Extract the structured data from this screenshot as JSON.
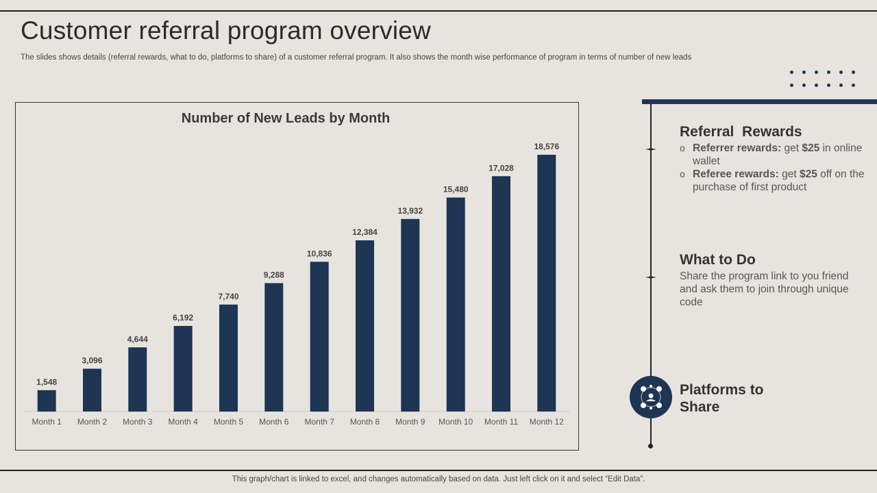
{
  "header": {
    "title": "Customer referral program overview",
    "subtitle": "The slides shows details (referral rewards, what to do, platforms to share) of a customer referral program. It also shows the month wise performance of program in terms of number of new leads"
  },
  "chart_data": {
    "type": "bar",
    "title": "Number of New Leads by Month",
    "categories": [
      "Month 1",
      "Month 2",
      "Month 3",
      "Month 4",
      "Month 5",
      "Month 6",
      "Month 7",
      "Month 8",
      "Month 9",
      "Month 10",
      "Month 11",
      "Month 12"
    ],
    "values": [
      1548,
      3096,
      4644,
      6192,
      7740,
      9288,
      10836,
      12384,
      13932,
      15480,
      17028,
      18576
    ],
    "value_labels": [
      "1,548",
      "3,096",
      "4,644",
      "6,192",
      "7,740",
      "9,288",
      "10,836",
      "12,384",
      "13,932",
      "15,480",
      "17,028",
      "18,576"
    ],
    "xlabel": "",
    "ylabel": "",
    "ylim": [
      0,
      20000
    ],
    "grid": false,
    "legend": "none",
    "bar_color": "#1e3553"
  },
  "sections": {
    "rewards": {
      "heading": "Referral  Rewards",
      "items": [
        {
          "bullet": "o",
          "bold": "Referrer rewards:",
          "pre": " get ",
          "strong": "$25",
          "post": " in online wallet"
        },
        {
          "bullet": "o",
          "bold": "Referee rewards:",
          "pre": " get ",
          "strong": "$25",
          "post": " off on the purchase of first product"
        }
      ]
    },
    "what_to_do": {
      "heading": "What to Do",
      "body": "Share the program link to you friend and ask them to join through unique code"
    },
    "platforms": {
      "heading_line1": "Platforms to",
      "heading_line2": "Share"
    }
  },
  "colors": {
    "accent": "#1e3553",
    "background": "#e7e4df"
  },
  "footer": {
    "note": "This graph/chart is linked to excel,  and changes automatically based on data. Just left click on it and select “Edit Data”."
  }
}
